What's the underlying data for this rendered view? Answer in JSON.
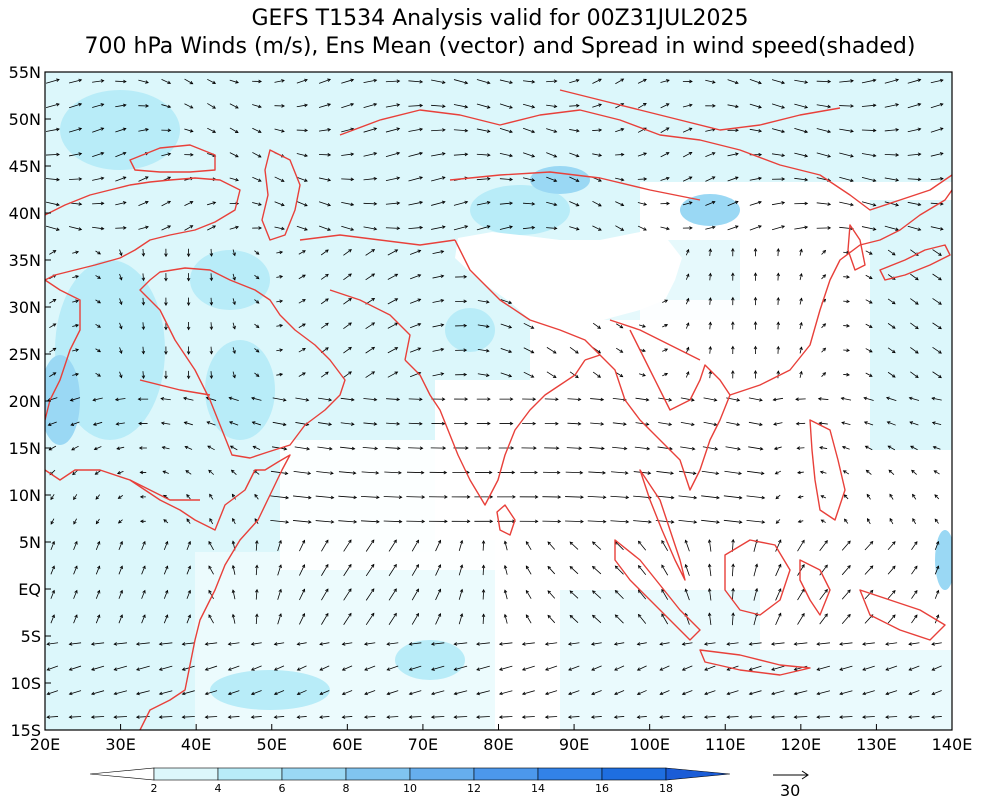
{
  "title_line1": "GEFS T1534 Analysis valid for 00Z31JUL2025",
  "title_line2": "700 hPa Winds (m/s), Ens Mean (vector) and Spread in wind speed(shaded)",
  "map": {
    "lon_range": [
      20,
      140
    ],
    "lat_range": [
      -15,
      55
    ],
    "lon_tick_labels": [
      "20E",
      "30E",
      "40E",
      "50E",
      "60E",
      "70E",
      "80E",
      "90E",
      "100E",
      "110E",
      "120E",
      "130E",
      "140E"
    ],
    "lat_tick_labels": [
      "55N",
      "50N",
      "45N",
      "40N",
      "35N",
      "30N",
      "25N",
      "20N",
      "15N",
      "10N",
      "5N",
      "EQ",
      "5S",
      "10S",
      "15S"
    ],
    "coastline_color": "#e8403a",
    "vector_color": "#000000",
    "masked_region": "Tibetan Plateau (surface above 700 hPa)"
  },
  "colorbar": {
    "labels": [
      "2",
      "4",
      "6",
      "8",
      "10",
      "12",
      "14",
      "16",
      "18"
    ],
    "colors": [
      "#ffffff",
      "#dcf7fb",
      "#b8ecf8",
      "#9ad8f4",
      "#80c4f0",
      "#66aeee",
      "#4c98ec",
      "#3282e8",
      "#1e6ee0",
      "#1a5cd6"
    ]
  },
  "reference_vector": {
    "label": "30",
    "units": "m/s"
  }
}
